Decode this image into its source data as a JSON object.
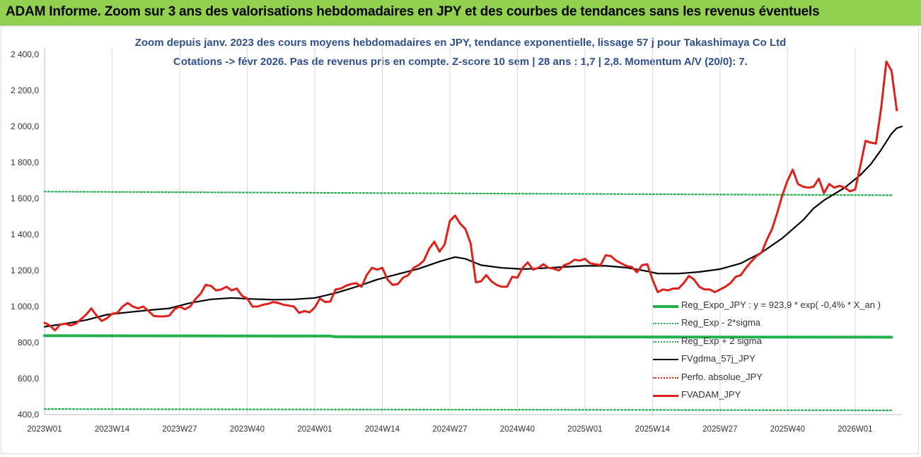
{
  "banner": {
    "title": "ADAM Informe. Zoom sur 3 ans des valorisations hebdomadaires en JPY et des courbes de tendances sans les revenus éventuels"
  },
  "chart_data": {
    "type": "line",
    "title": "Zoom depuis janv. 2023 des cours moyens hebdomadaires en JPY, tendance exponentielle, lissage 57 j pour Takashimaya Co Ltd",
    "subtitle": "Cotations -> févr 2026.  Pas de revenus pris en compte. Z-score 10 sem | 28 ans : 1,7 | 2,8. Momentum A/V (20/0): 7.",
    "xlabel": "",
    "ylabel": "",
    "ylim": [
      400,
      2400
    ],
    "y_ticks": [
      "400,0",
      "600,0",
      "800,0",
      "1 000,0",
      "1 200,0",
      "1 400,0",
      "1 600,0",
      "1 800,0",
      "2 000,0",
      "2 200,0",
      "2 400,0"
    ],
    "x_ticks": [
      "2023W01",
      "2023W14",
      "2023W27",
      "2023W40",
      "2024W01",
      "2024W14",
      "2024W27",
      "2024W40",
      "2025W01",
      "2025W14",
      "2025W27",
      "2025W40",
      "2026W01"
    ],
    "x_weeks": [
      0,
      13,
      26,
      39,
      52,
      65,
      78,
      91,
      104,
      117,
      130,
      143,
      156
    ],
    "grid": "vertical",
    "legend_position": "bottom-right",
    "series": [
      {
        "name": "Reg_Expo_JPY : y = 923,9 * exp( -0,4% *  X_an )",
        "color": "#22b14c",
        "style": "solid-thick",
        "points": [
          [
            0,
            838
          ],
          [
            55,
            836
          ],
          [
            56,
            832
          ],
          [
            163,
            830
          ]
        ]
      },
      {
        "name": "Reg_Exp - 2*sigma",
        "color": "#22b14c",
        "style": "dotted",
        "points": [
          [
            0,
            431
          ],
          [
            163,
            424
          ]
        ]
      },
      {
        "name": "Reg_Exp + 2 sigma",
        "color": "#22b14c",
        "style": "dotted",
        "points": [
          [
            0,
            1638
          ],
          [
            163,
            1618
          ]
        ]
      },
      {
        "name": "FVgdma_57j_JPY",
        "color": "#000000",
        "style": "solid",
        "points": [
          [
            0,
            888
          ],
          [
            4,
            905
          ],
          [
            8,
            925
          ],
          [
            12,
            955
          ],
          [
            16,
            968
          ],
          [
            20,
            980
          ],
          [
            24,
            990
          ],
          [
            28,
            1020
          ],
          [
            32,
            1040
          ],
          [
            36,
            1048
          ],
          [
            40,
            1042
          ],
          [
            44,
            1038
          ],
          [
            48,
            1040
          ],
          [
            52,
            1048
          ],
          [
            56,
            1075
          ],
          [
            60,
            1110
          ],
          [
            64,
            1150
          ],
          [
            68,
            1180
          ],
          [
            72,
            1210
          ],
          [
            76,
            1250
          ],
          [
            79,
            1275
          ],
          [
            81,
            1265
          ],
          [
            84,
            1230
          ],
          [
            88,
            1215
          ],
          [
            92,
            1208
          ],
          [
            96,
            1213
          ],
          [
            100,
            1220
          ],
          [
            104,
            1226
          ],
          [
            108,
            1226
          ],
          [
            112,
            1216
          ],
          [
            116,
            1196
          ],
          [
            118,
            1183
          ],
          [
            122,
            1183
          ],
          [
            126,
            1192
          ],
          [
            130,
            1208
          ],
          [
            134,
            1240
          ],
          [
            138,
            1300
          ],
          [
            142,
            1380
          ],
          [
            146,
            1480
          ],
          [
            148,
            1545
          ],
          [
            150,
            1590
          ],
          [
            154,
            1660
          ],
          [
            157,
            1730
          ],
          [
            159,
            1790
          ],
          [
            161,
            1870
          ],
          [
            163,
            1960
          ],
          [
            164,
            1990
          ],
          [
            165,
            2000
          ]
        ]
      },
      {
        "name": "Perfo. absolue_JPY",
        "color": "#e0201b",
        "style": "dotted",
        "points": []
      },
      {
        "name": "FVADAM_JPY",
        "color": "#e0201b",
        "style": "solid-thick",
        "points": [
          [
            0,
            910
          ],
          [
            1,
            895
          ],
          [
            2,
            868
          ],
          [
            3,
            900
          ],
          [
            4,
            905
          ],
          [
            5,
            895
          ],
          [
            6,
            905
          ],
          [
            7,
            930
          ],
          [
            8,
            955
          ],
          [
            9,
            990
          ],
          [
            10,
            950
          ],
          [
            11,
            920
          ],
          [
            12,
            935
          ],
          [
            13,
            960
          ],
          [
            14,
            965
          ],
          [
            15,
            1000
          ],
          [
            16,
            1020
          ],
          [
            17,
            1000
          ],
          [
            18,
            990
          ],
          [
            19,
            1000
          ],
          [
            20,
            975
          ],
          [
            21,
            948
          ],
          [
            22,
            945
          ],
          [
            23,
            945
          ],
          [
            24,
            950
          ],
          [
            25,
            985
          ],
          [
            26,
            1000
          ],
          [
            27,
            985
          ],
          [
            28,
            1000
          ],
          [
            29,
            1040
          ],
          [
            30,
            1070
          ],
          [
            31,
            1120
          ],
          [
            32,
            1115
          ],
          [
            33,
            1090
          ],
          [
            34,
            1095
          ],
          [
            35,
            1110
          ],
          [
            36,
            1090
          ],
          [
            37,
            1100
          ],
          [
            38,
            1060
          ],
          [
            39,
            1045
          ],
          [
            40,
            1000
          ],
          [
            41,
            1000
          ],
          [
            42,
            1010
          ],
          [
            43,
            1015
          ],
          [
            44,
            1025
          ],
          [
            45,
            1020
          ],
          [
            46,
            1010
          ],
          [
            47,
            1005
          ],
          [
            48,
            1000
          ],
          [
            49,
            965
          ],
          [
            50,
            975
          ],
          [
            51,
            968
          ],
          [
            52,
            995
          ],
          [
            53,
            1045
          ],
          [
            54,
            1025
          ],
          [
            55,
            1028
          ],
          [
            56,
            1095
          ],
          [
            57,
            1100
          ],
          [
            58,
            1115
          ],
          [
            59,
            1125
          ],
          [
            60,
            1130
          ],
          [
            61,
            1110
          ],
          [
            62,
            1175
          ],
          [
            63,
            1215
          ],
          [
            64,
            1205
          ],
          [
            65,
            1215
          ],
          [
            66,
            1150
          ],
          [
            67,
            1120
          ],
          [
            68,
            1125
          ],
          [
            69,
            1160
          ],
          [
            70,
            1175
          ],
          [
            71,
            1215
          ],
          [
            72,
            1230
          ],
          [
            73,
            1255
          ],
          [
            74,
            1320
          ],
          [
            75,
            1360
          ],
          [
            76,
            1305
          ],
          [
            77,
            1345
          ],
          [
            78,
            1475
          ],
          [
            79,
            1505
          ],
          [
            80,
            1460
          ],
          [
            81,
            1430
          ],
          [
            82,
            1350
          ],
          [
            83,
            1135
          ],
          [
            84,
            1140
          ],
          [
            85,
            1175
          ],
          [
            86,
            1140
          ],
          [
            87,
            1120
          ],
          [
            88,
            1110
          ],
          [
            89,
            1110
          ],
          [
            90,
            1165
          ],
          [
            91,
            1160
          ],
          [
            92,
            1215
          ],
          [
            93,
            1245
          ],
          [
            94,
            1205
          ],
          [
            95,
            1215
          ],
          [
            96,
            1235
          ],
          [
            97,
            1215
          ],
          [
            98,
            1210
          ],
          [
            99,
            1200
          ],
          [
            100,
            1230
          ],
          [
            101,
            1240
          ],
          [
            102,
            1260
          ],
          [
            103,
            1255
          ],
          [
            104,
            1265
          ],
          [
            105,
            1240
          ],
          [
            106,
            1235
          ],
          [
            107,
            1230
          ],
          [
            108,
            1285
          ],
          [
            109,
            1280
          ],
          [
            110,
            1255
          ],
          [
            111,
            1240
          ],
          [
            112,
            1225
          ],
          [
            113,
            1220
          ],
          [
            114,
            1190
          ],
          [
            115,
            1230
          ],
          [
            116,
            1235
          ],
          [
            117,
            1150
          ],
          [
            118,
            1080
          ],
          [
            119,
            1095
          ],
          [
            120,
            1090
          ],
          [
            121,
            1100
          ],
          [
            122,
            1100
          ],
          [
            123,
            1130
          ],
          [
            124,
            1170
          ],
          [
            125,
            1150
          ],
          [
            126,
            1110
          ],
          [
            127,
            1095
          ],
          [
            128,
            1095
          ],
          [
            129,
            1080
          ],
          [
            130,
            1095
          ],
          [
            131,
            1110
          ],
          [
            132,
            1130
          ],
          [
            133,
            1165
          ],
          [
            134,
            1175
          ],
          [
            135,
            1215
          ],
          [
            136,
            1250
          ],
          [
            137,
            1280
          ],
          [
            138,
            1300
          ],
          [
            139,
            1370
          ],
          [
            140,
            1430
          ],
          [
            141,
            1520
          ],
          [
            142,
            1620
          ],
          [
            143,
            1700
          ],
          [
            144,
            1760
          ],
          [
            145,
            1680
          ],
          [
            146,
            1665
          ],
          [
            147,
            1660
          ],
          [
            148,
            1665
          ],
          [
            149,
            1710
          ],
          [
            150,
            1630
          ],
          [
            151,
            1680
          ],
          [
            152,
            1660
          ],
          [
            153,
            1670
          ],
          [
            154,
            1660
          ],
          [
            155,
            1640
          ],
          [
            156,
            1650
          ],
          [
            157,
            1780
          ],
          [
            158,
            1920
          ],
          [
            159,
            1910
          ],
          [
            160,
            1905
          ],
          [
            161,
            2100
          ],
          [
            162,
            2360
          ],
          [
            163,
            2310
          ],
          [
            164,
            2090
          ]
        ]
      }
    ]
  }
}
